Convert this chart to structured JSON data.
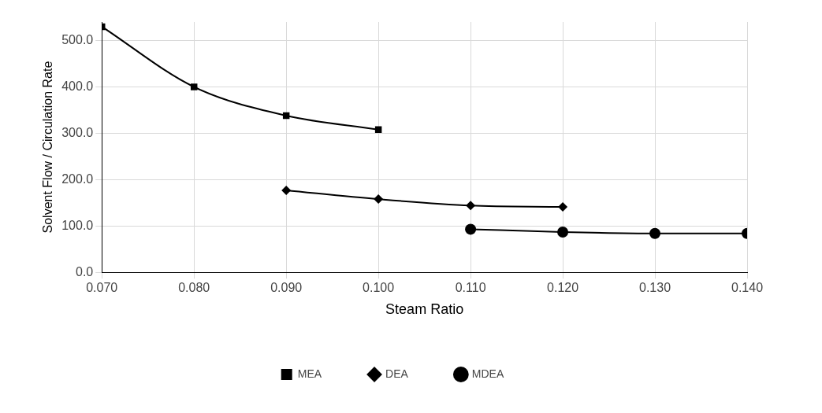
{
  "chart_data": {
    "type": "line",
    "xlabel": "Steam Ratio",
    "ylabel": "Solvent Flow / Circulation Rate",
    "xlim": [
      0.07,
      0.14
    ],
    "xticks": [
      {
        "value": 0.07,
        "label": "0.070"
      },
      {
        "value": 0.08,
        "label": "0.080"
      },
      {
        "value": 0.09,
        "label": "0.090"
      },
      {
        "value": 0.1,
        "label": "0.100"
      },
      {
        "value": 0.11,
        "label": "0.110"
      },
      {
        "value": 0.12,
        "label": "0.120"
      },
      {
        "value": 0.13,
        "label": "0.130"
      },
      {
        "value": 0.14,
        "label": "0.140"
      }
    ],
    "ylim": [
      0,
      540
    ],
    "yticks": [
      {
        "value": 0,
        "label": "0.0"
      },
      {
        "value": 100,
        "label": "100.0"
      },
      {
        "value": 200,
        "label": "200.0"
      },
      {
        "value": 300,
        "label": "300.0"
      },
      {
        "value": 400,
        "label": "400.0"
      },
      {
        "value": 500,
        "label": "500.0"
      }
    ],
    "grid": true,
    "legend": "bottom",
    "series": [
      {
        "name": "MEA",
        "color": "#000000",
        "marker": "square",
        "x": [
          0.07,
          0.08,
          0.09,
          0.1
        ],
        "values": [
          530,
          400,
          338,
          308
        ]
      },
      {
        "name": "DEA",
        "color": "#000000",
        "marker": "diamond",
        "x": [
          0.09,
          0.1,
          0.11,
          0.12
        ],
        "values": [
          177,
          158,
          144,
          141
        ]
      },
      {
        "name": "MDEA",
        "color": "#000000",
        "marker": "circle",
        "x": [
          0.11,
          0.12,
          0.13,
          0.14
        ],
        "values": [
          93,
          87,
          84,
          84
        ]
      }
    ]
  }
}
